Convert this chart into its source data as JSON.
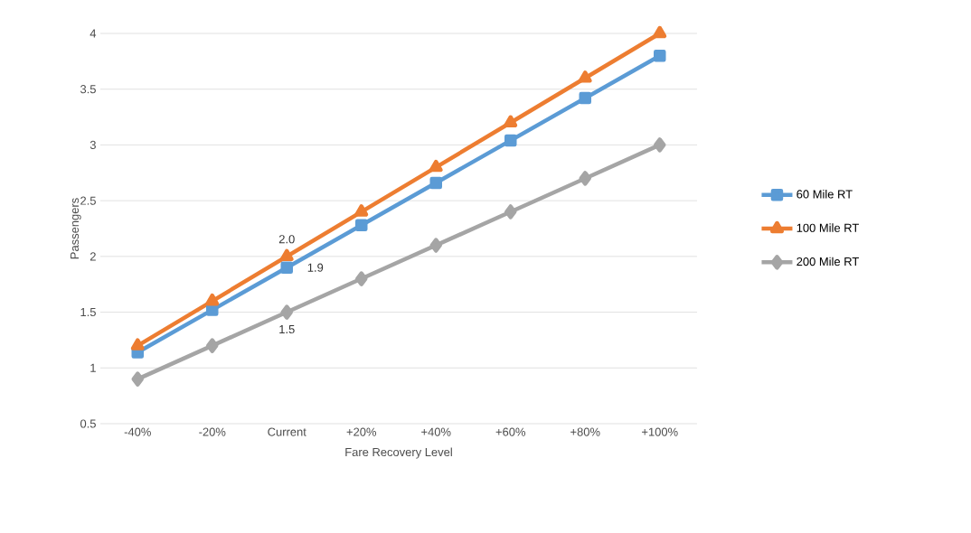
{
  "chart_data": {
    "type": "line",
    "xlabel": "Fare Recovery Level",
    "ylabel": "Passengers",
    "categories": [
      "-40%",
      "-20%",
      "Current",
      "+20%",
      "+40%",
      "+60%",
      "+80%",
      "+100%"
    ],
    "series": [
      {
        "name": "60 Mile RT",
        "color": "#5b9bd5",
        "marker": "square",
        "values": [
          1.14,
          1.52,
          1.9,
          2.28,
          2.66,
          3.04,
          3.42,
          3.8
        ],
        "value_labels": [
          null,
          null,
          "1.9",
          null,
          null,
          null,
          null,
          null
        ]
      },
      {
        "name": "100 Mile RT",
        "color": "#ed7d31",
        "marker": "triangle",
        "values": [
          1.2,
          1.6,
          2.0,
          2.4,
          2.8,
          3.2,
          3.6,
          4.0
        ],
        "value_labels": [
          null,
          null,
          "2.0",
          null,
          null,
          null,
          null,
          null
        ]
      },
      {
        "name": "200 Mile RT",
        "color": "#a5a5a5",
        "marker": "diamond",
        "values": [
          0.9,
          1.2,
          1.5,
          1.8,
          2.1,
          2.4,
          2.7,
          3.0
        ],
        "value_labels": [
          null,
          null,
          "1.5",
          null,
          null,
          null,
          null,
          null
        ]
      }
    ],
    "ylim": [
      0.5,
      4
    ],
    "yticks": [
      0.5,
      1,
      1.5,
      2,
      2.5,
      3,
      3.5,
      4
    ],
    "grid": "y",
    "legend": "right"
  }
}
